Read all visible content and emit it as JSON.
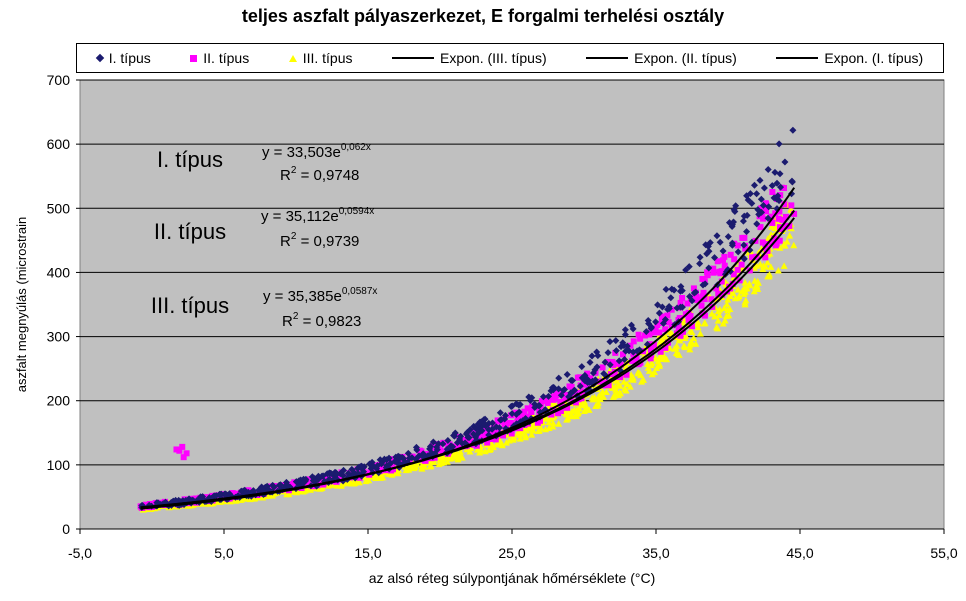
{
  "chart_data": {
    "type": "scatter",
    "title": "teljes aszfalt pályaszerkezet, E forgalmi terhelési osztály",
    "xlabel": "az alsó réteg súlypontjának hőmérséklete (°C)",
    "ylabel": "aszfalt megnyúlás (microstrain",
    "xlim": [
      -5,
      55
    ],
    "ylim": [
      0,
      700
    ],
    "x_ticks": [
      "-5,0",
      "5,0",
      "15,0",
      "25,0",
      "35,0",
      "45,0",
      "55,0"
    ],
    "y_ticks": [
      "0",
      "100",
      "200",
      "300",
      "400",
      "500",
      "600",
      "700"
    ],
    "grid": true,
    "legend_position": "top",
    "plot_background": "#c0c0c0",
    "series": [
      {
        "name": "I. típus",
        "marker": "diamond",
        "color": "#1b1b6f",
        "trend": {
          "a": 33.503,
          "b": 0.062
        },
        "x_range": [
          -0.8,
          44.6
        ]
      },
      {
        "name": "II. típus",
        "marker": "square",
        "color": "#ff00ff",
        "trend": {
          "a": 35.112,
          "b": 0.0594
        },
        "x_range": [
          -0.8,
          44.6
        ],
        "outliers": [
          [
            1.9,
            122
          ],
          [
            2.1,
            128
          ],
          [
            2.4,
            118
          ],
          [
            1.7,
            124
          ],
          [
            2.2,
            112
          ]
        ]
      },
      {
        "name": "III. típus",
        "marker": "triangle",
        "color": "#ffff00",
        "trend": {
          "a": 35.385,
          "b": 0.0587
        },
        "x_range": [
          -0.8,
          44.6
        ]
      }
    ],
    "trendlines": [
      {
        "name": "Expon. (III. típus)",
        "a": 35.385,
        "b": 0.0587
      },
      {
        "name": "Expon. (II. típus)",
        "a": 35.112,
        "b": 0.0594
      },
      {
        "name": "Expon. (I. típus)",
        "a": 33.503,
        "b": 0.062
      }
    ],
    "annotations": [
      {
        "label": "I. típus",
        "equation": "y = 33,503e",
        "exponent": "0,062x",
        "r2": "0,9748"
      },
      {
        "label": "II. típus",
        "equation": "y = 35,112e",
        "exponent": "0,0594x",
        "r2": "0,9739"
      },
      {
        "label": "III. típus",
        "equation": "y = 35,385e",
        "exponent": "0,0587x",
        "r2": "0,9823"
      }
    ],
    "r2_prefix": "R",
    "r2_suffix": " = "
  }
}
